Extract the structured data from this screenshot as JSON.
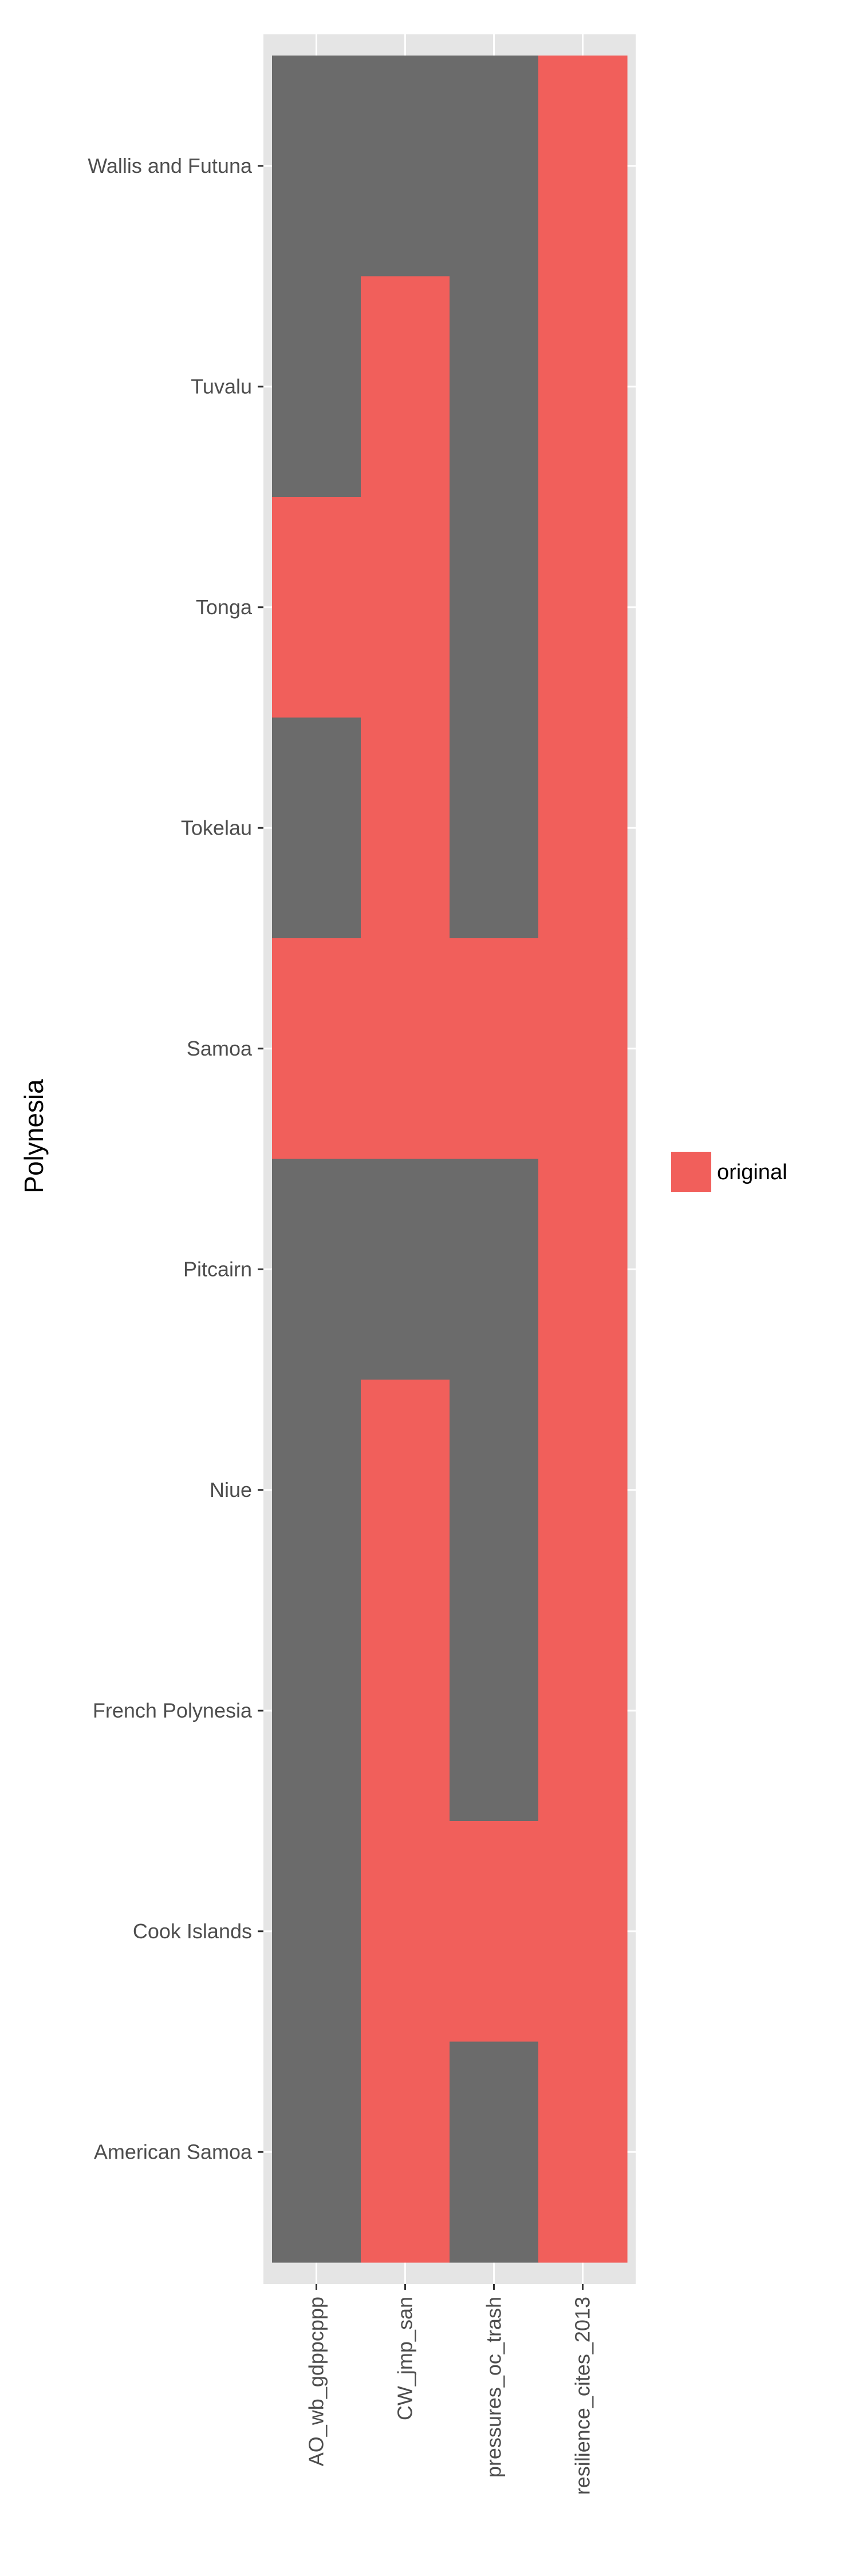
{
  "chart_data": {
    "type": "heatmap",
    "ylabel": "Polynesia",
    "x_categories": [
      "AO_wb_gdppcppp",
      "CW_jmp_san",
      "pressures_oc_trash",
      "resilience_cites_2013"
    ],
    "y_categories": [
      "Wallis and Futuna",
      "Tuvalu",
      "Tonga",
      "Tokelau",
      "Samoa",
      "Pitcairn",
      "Niue",
      "French Polynesia",
      "Cook Islands",
      "American Samoa"
    ],
    "cells": [
      [
        "missing",
        "missing",
        "missing",
        "original"
      ],
      [
        "missing",
        "original",
        "missing",
        "original"
      ],
      [
        "original",
        "original",
        "missing",
        "original"
      ],
      [
        "missing",
        "original",
        "missing",
        "original"
      ],
      [
        "original",
        "original",
        "original",
        "original"
      ],
      [
        "missing",
        "missing",
        "missing",
        "original"
      ],
      [
        "missing",
        "original",
        "missing",
        "original"
      ],
      [
        "missing",
        "original",
        "missing",
        "original"
      ],
      [
        "missing",
        "original",
        "original",
        "original"
      ],
      [
        "missing",
        "original",
        "missing",
        "original"
      ]
    ],
    "legend": [
      {
        "label": "original",
        "color": "#F15F5B"
      }
    ],
    "legend_position": "right",
    "colors": {
      "original": "#F15F5B",
      "missing": "#6B6B6B",
      "panel": "#E5E5E5",
      "grid": "#FFFFFF"
    },
    "grid": true
  }
}
